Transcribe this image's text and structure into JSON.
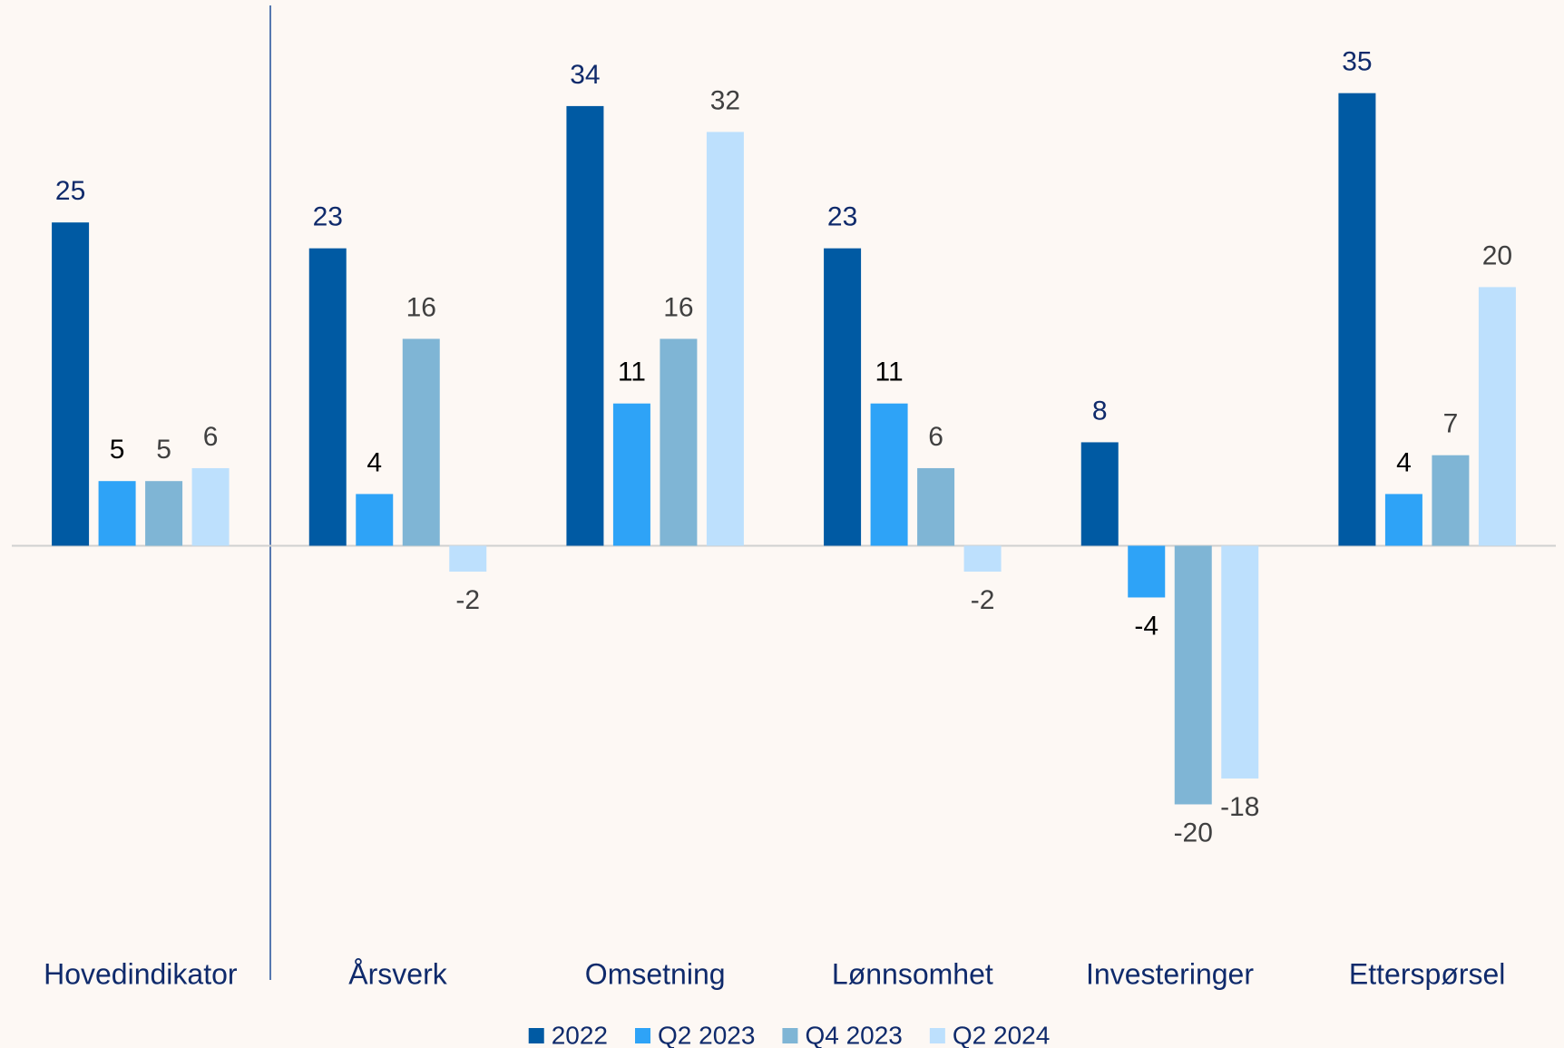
{
  "chart_data": {
    "type": "bar",
    "categories": [
      "Hovedindikator",
      "Årsverk",
      "Omsetning",
      "Lønnsomhet",
      "Investeringer",
      "Etterspørsel"
    ],
    "series": [
      {
        "name": "2022",
        "color": "#005aa3",
        "label_color": "#0f2a6b",
        "values": [
          25,
          23,
          34,
          23,
          8,
          35
        ]
      },
      {
        "name": "Q2 2023",
        "color": "#2ea3f7",
        "label_color": "#000000",
        "values": [
          5,
          4,
          11,
          11,
          -4,
          4
        ]
      },
      {
        "name": "Q4 2023",
        "color": "#7fb5d5",
        "label_color": "#404040",
        "values": [
          5,
          16,
          16,
          6,
          -20,
          7
        ]
      },
      {
        "name": "Q2 2024",
        "color": "#bde0fd",
        "label_color": "#404040",
        "values": [
          6,
          -2,
          32,
          -2,
          -18,
          20
        ]
      }
    ],
    "ylim": [
      -30,
      40
    ],
    "grid": false,
    "legend": "bottom"
  }
}
